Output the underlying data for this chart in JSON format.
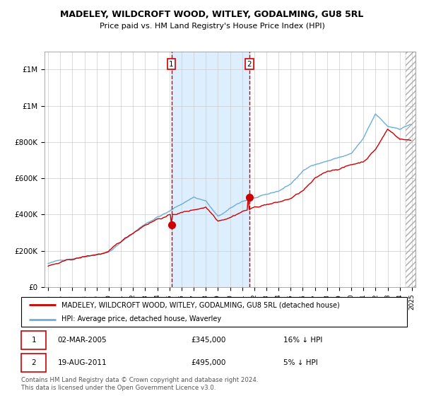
{
  "title": "MADELEY, WILDCROFT WOOD, WITLEY, GODALMING, GU8 5RL",
  "subtitle": "Price paid vs. HM Land Registry's House Price Index (HPI)",
  "sale1": {
    "date": "02-MAR-2005",
    "price": 345000,
    "label": "1",
    "pct": "16% ↓ HPI"
  },
  "sale2": {
    "date": "19-AUG-2011",
    "price": 495000,
    "label": "2",
    "pct": "5% ↓ HPI"
  },
  "legend_red": "MADELEY, WILDCROFT WOOD, WITLEY, GODALMING, GU8 5RL (detached house)",
  "legend_blue": "HPI: Average price, detached house, Waverley",
  "footnote": "Contains HM Land Registry data © Crown copyright and database right 2024.\nThis data is licensed under the Open Government Licence v3.0.",
  "ylim": [
    0,
    1300000
  ],
  "yticks": [
    0,
    200000,
    400000,
    600000,
    800000,
    1000000,
    1200000
  ],
  "start_year": 1995,
  "end_year": 2025,
  "hpi_color": "#6baed6",
  "price_color": "#cc0000",
  "shade_color": "#ddeeff",
  "grid_color": "#cccccc",
  "key_years": [
    1995,
    1997,
    2000,
    2003,
    2004,
    2005,
    2007,
    2008,
    2009,
    2010,
    2011,
    2012,
    2013,
    2014,
    2015,
    2016,
    2017,
    2018,
    2019,
    2020,
    2021,
    2022,
    2023,
    2024,
    2025
  ],
  "key_vals_blue": [
    130000,
    160000,
    205000,
    360000,
    400000,
    430000,
    510000,
    490000,
    400000,
    440000,
    480000,
    500000,
    510000,
    530000,
    570000,
    640000,
    680000,
    700000,
    720000,
    740000,
    820000,
    950000,
    880000,
    870000,
    900000
  ],
  "key_vals_red": [
    115000,
    145000,
    185000,
    335000,
    370000,
    390000,
    420000,
    440000,
    370000,
    395000,
    430000,
    450000,
    470000,
    480000,
    500000,
    540000,
    600000,
    640000,
    660000,
    680000,
    700000,
    770000,
    880000,
    830000,
    820000
  ]
}
